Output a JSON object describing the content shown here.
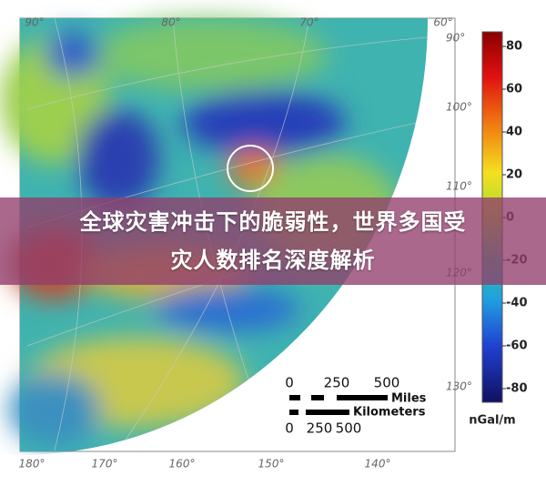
{
  "banner": {
    "lines": [
      "全球灾害冲击下的脆弱性，世界多国受",
      "灾人数排名深度解析"
    ]
  },
  "map": {
    "top_labels": [
      "90°",
      "80°",
      "70°",
      "60°"
    ],
    "right_labels": [
      "90°",
      "100°",
      "110°",
      "120°",
      "130°"
    ],
    "bottom_labels": [
      "180°",
      "170°",
      "160°",
      "150°",
      "140°"
    ]
  },
  "colorbar": {
    "ticks": [
      80,
      60,
      40,
      20,
      0,
      -20,
      -40,
      -60,
      -80
    ],
    "unit": "nGal/m"
  },
  "scale": {
    "miles_ticks": [
      "0",
      "250",
      "500"
    ],
    "miles_label": "Miles",
    "km_label": "Kilometers",
    "km_ticks": [
      "0",
      "250",
      "500"
    ]
  }
}
